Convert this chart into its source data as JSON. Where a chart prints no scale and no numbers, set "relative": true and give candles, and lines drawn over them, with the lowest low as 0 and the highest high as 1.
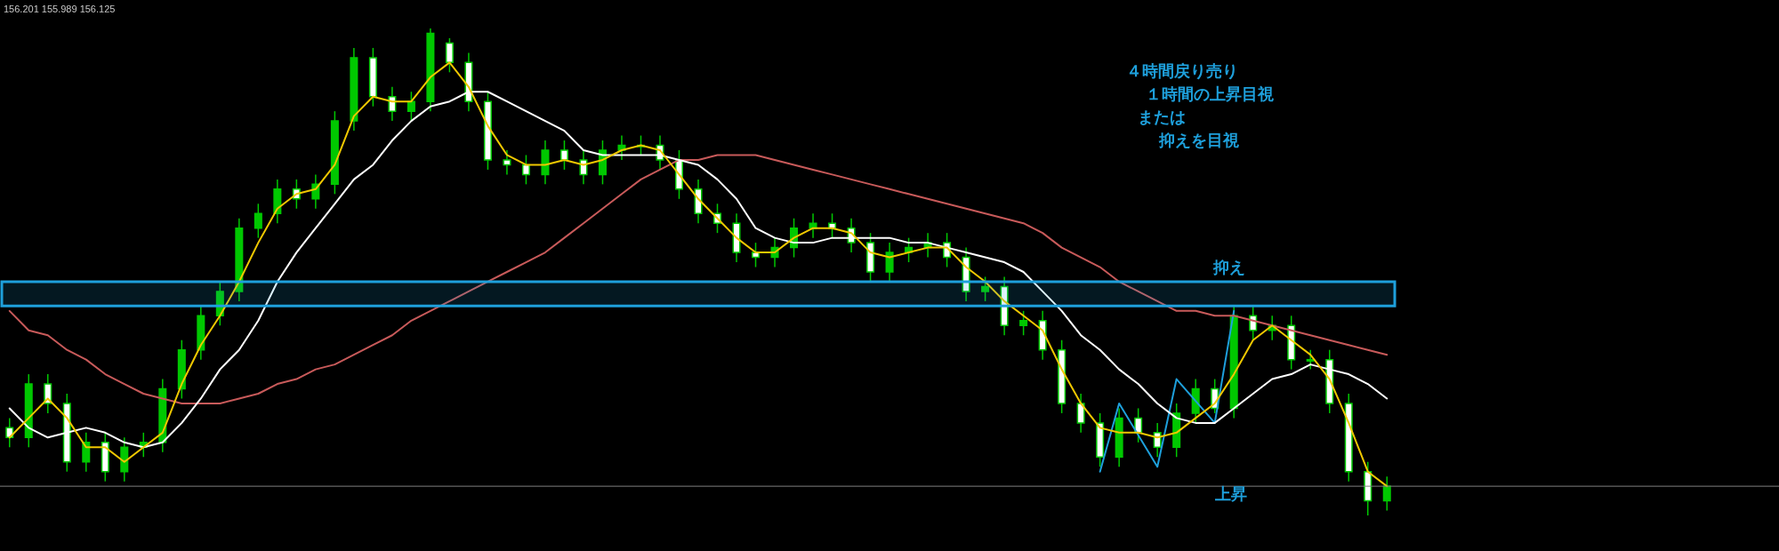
{
  "chart_data": {
    "type": "candlestick",
    "relative": true,
    "legend": false,
    "colors": [
      "#ffffff",
      "#00c800",
      "#ffffff",
      "#ffffff",
      "#00c800",
      "#ffffff",
      "#00c800",
      "#00c800",
      "#00c800",
      "#00c800",
      "#00c800",
      "#00c800",
      "#00c800",
      "#00c800",
      "#00c800",
      "#ffffff",
      "#00c800",
      "#00c800",
      "#00c800",
      "#ffffff",
      "#ffffff",
      "#00c800",
      "#00c800",
      "#ffffff",
      "#ffffff",
      "#ffffff",
      "#ffffff",
      "#ffffff",
      "#00c800",
      "#ffffff",
      "#ffffff",
      "#00c800",
      "#00c800",
      "#00c800",
      "#ffffff",
      "#ffffff",
      "#ffffff",
      "#ffffff",
      "#ffffff",
      "#ffffff",
      "#00c800",
      "#00c800",
      "#00c800",
      "#ffffff",
      "#ffffff",
      "#ffffff",
      "#00c800",
      "#00c800",
      "#00c800",
      "#ffffff",
      "#ffffff",
      "#00c800",
      "#ffffff",
      "#00c800",
      "#ffffff",
      "#ffffff",
      "#ffffff",
      "#ffffff",
      "#00c800",
      "#ffffff",
      "#ffffff",
      "#00c800",
      "#00c800",
      "#ffffff",
      "#00c800",
      "#ffffff",
      "#00c800",
      "#ffffff",
      "#00c800",
      "#ffffff",
      "#ffffff",
      "#ffffff",
      "#00c800"
    ],
    "categories": [
      null,
      null,
      null,
      null,
      null,
      null,
      null,
      null,
      null,
      null,
      null,
      null,
      null,
      null,
      null,
      null,
      null,
      null,
      null,
      null,
      null,
      null,
      null,
      null,
      null,
      null,
      null,
      null,
      null,
      null,
      null,
      null,
      null,
      null,
      null,
      null,
      null,
      null,
      null,
      null,
      null,
      null,
      null,
      null,
      null,
      null,
      null,
      null,
      null,
      null,
      null,
      null,
      null,
      null,
      null,
      null,
      null,
      null,
      null,
      null,
      null,
      null,
      null,
      null,
      null,
      null,
      null,
      null,
      null,
      null,
      null,
      null,
      null
    ],
    "ohlc": [
      [
        0.18,
        0.2,
        0.14,
        0.16
      ],
      [
        0.16,
        0.29,
        0.14,
        0.27
      ],
      [
        0.27,
        0.29,
        0.21,
        0.23
      ],
      [
        0.23,
        0.25,
        0.09,
        0.11
      ],
      [
        0.11,
        0.17,
        0.09,
        0.15
      ],
      [
        0.15,
        0.17,
        0.07,
        0.09
      ],
      [
        0.09,
        0.16,
        0.07,
        0.14
      ],
      [
        0.14,
        0.17,
        0.12,
        0.15
      ],
      [
        0.15,
        0.28,
        0.13,
        0.26
      ],
      [
        0.26,
        0.36,
        0.24,
        0.34
      ],
      [
        0.34,
        0.43,
        0.32,
        0.41
      ],
      [
        0.41,
        0.48,
        0.39,
        0.46
      ],
      [
        0.46,
        0.61,
        0.44,
        0.59
      ],
      [
        0.59,
        0.64,
        0.57,
        0.62
      ],
      [
        0.62,
        0.69,
        0.6,
        0.67
      ],
      [
        0.67,
        0.69,
        0.63,
        0.65
      ],
      [
        0.65,
        0.7,
        0.63,
        0.68
      ],
      [
        0.68,
        0.83,
        0.66,
        0.81
      ],
      [
        0.81,
        0.96,
        0.79,
        0.94
      ],
      [
        0.94,
        0.96,
        0.84,
        0.86
      ],
      [
        0.86,
        0.88,
        0.81,
        0.83
      ],
      [
        0.83,
        0.87,
        0.81,
        0.85
      ],
      [
        0.85,
        1.0,
        0.83,
        0.99
      ],
      [
        0.97,
        0.98,
        0.91,
        0.93
      ],
      [
        0.93,
        0.95,
        0.83,
        0.85
      ],
      [
        0.85,
        0.87,
        0.71,
        0.73
      ],
      [
        0.73,
        0.75,
        0.7,
        0.72
      ],
      [
        0.72,
        0.74,
        0.68,
        0.7
      ],
      [
        0.7,
        0.77,
        0.68,
        0.75
      ],
      [
        0.75,
        0.77,
        0.71,
        0.73
      ],
      [
        0.73,
        0.75,
        0.68,
        0.7
      ],
      [
        0.7,
        0.77,
        0.68,
        0.75
      ],
      [
        0.75,
        0.78,
        0.73,
        0.76
      ],
      [
        0.76,
        0.78,
        0.74,
        0.76
      ],
      [
        0.76,
        0.78,
        0.71,
        0.73
      ],
      [
        0.73,
        0.75,
        0.65,
        0.67
      ],
      [
        0.67,
        0.69,
        0.6,
        0.62
      ],
      [
        0.62,
        0.64,
        0.58,
        0.6
      ],
      [
        0.6,
        0.62,
        0.52,
        0.54
      ],
      [
        0.54,
        0.56,
        0.51,
        0.53
      ],
      [
        0.53,
        0.57,
        0.51,
        0.55
      ],
      [
        0.55,
        0.61,
        0.53,
        0.59
      ],
      [
        0.59,
        0.62,
        0.57,
        0.6
      ],
      [
        0.6,
        0.62,
        0.57,
        0.59
      ],
      [
        0.59,
        0.61,
        0.54,
        0.56
      ],
      [
        0.56,
        0.58,
        0.48,
        0.5
      ],
      [
        0.5,
        0.56,
        0.48,
        0.54
      ],
      [
        0.54,
        0.57,
        0.52,
        0.55
      ],
      [
        0.55,
        0.58,
        0.53,
        0.56
      ],
      [
        0.56,
        0.58,
        0.51,
        0.53
      ],
      [
        0.53,
        0.55,
        0.44,
        0.46
      ],
      [
        0.46,
        0.49,
        0.44,
        0.47
      ],
      [
        0.47,
        0.49,
        0.37,
        0.39
      ],
      [
        0.39,
        0.42,
        0.37,
        0.4
      ],
      [
        0.4,
        0.42,
        0.32,
        0.34
      ],
      [
        0.34,
        0.36,
        0.21,
        0.23
      ],
      [
        0.23,
        0.25,
        0.17,
        0.19
      ],
      [
        0.19,
        0.21,
        0.1,
        0.12
      ],
      [
        0.12,
        0.22,
        0.1,
        0.2
      ],
      [
        0.2,
        0.22,
        0.15,
        0.17
      ],
      [
        0.17,
        0.19,
        0.12,
        0.14
      ],
      [
        0.14,
        0.23,
        0.12,
        0.21
      ],
      [
        0.21,
        0.28,
        0.19,
        0.26
      ],
      [
        0.26,
        0.28,
        0.21,
        0.22
      ],
      [
        0.22,
        0.43,
        0.2,
        0.41
      ],
      [
        0.41,
        0.43,
        0.36,
        0.38
      ],
      [
        0.38,
        0.41,
        0.36,
        0.39
      ],
      [
        0.39,
        0.41,
        0.3,
        0.32
      ],
      [
        0.32,
        0.34,
        0.3,
        0.32
      ],
      [
        0.32,
        0.34,
        0.21,
        0.23
      ],
      [
        0.23,
        0.25,
        0.07,
        0.09
      ],
      [
        0.09,
        0.11,
        0.0,
        0.03
      ],
      [
        0.03,
        0.08,
        0.01,
        0.06
      ]
    ],
    "series": [
      {
        "type": "line",
        "color": "#f0c800",
        "values": [
          0.16,
          0.2,
          0.24,
          0.2,
          0.14,
          0.14,
          0.11,
          0.14,
          0.17,
          0.27,
          0.35,
          0.41,
          0.48,
          0.56,
          0.63,
          0.66,
          0.67,
          0.72,
          0.82,
          0.86,
          0.85,
          0.85,
          0.9,
          0.93,
          0.88,
          0.8,
          0.74,
          0.72,
          0.72,
          0.73,
          0.72,
          0.73,
          0.75,
          0.76,
          0.75,
          0.7,
          0.65,
          0.61,
          0.57,
          0.54,
          0.54,
          0.57,
          0.59,
          0.59,
          0.58,
          0.54,
          0.53,
          0.54,
          0.55,
          0.55,
          0.51,
          0.48,
          0.44,
          0.41,
          0.38,
          0.3,
          0.23,
          0.18,
          0.17,
          0.17,
          0.16,
          0.17,
          0.2,
          0.23,
          0.29,
          0.36,
          0.39,
          0.36,
          0.33,
          0.28,
          0.19,
          0.09,
          0.06
        ]
      },
      {
        "type": "line",
        "color": "#ffffff",
        "values": [
          0.22,
          0.18,
          0.16,
          0.17,
          0.18,
          0.17,
          0.15,
          0.14,
          0.15,
          0.19,
          0.24,
          0.3,
          0.34,
          0.4,
          0.48,
          0.54,
          0.59,
          0.64,
          0.69,
          0.72,
          0.77,
          0.81,
          0.84,
          0.85,
          0.87,
          0.87,
          0.85,
          0.83,
          0.81,
          0.79,
          0.75,
          0.74,
          0.74,
          0.74,
          0.74,
          0.73,
          0.72,
          0.69,
          0.65,
          0.59,
          0.57,
          0.56,
          0.56,
          0.57,
          0.57,
          0.57,
          0.57,
          0.56,
          0.56,
          0.55,
          0.54,
          0.53,
          0.52,
          0.5,
          0.46,
          0.42,
          0.37,
          0.34,
          0.3,
          0.27,
          0.23,
          0.2,
          0.19,
          0.19,
          0.22,
          0.25,
          0.28,
          0.29,
          0.31,
          0.3,
          0.29,
          0.27,
          0.24
        ]
      },
      {
        "type": "line",
        "color": "#c85a5a",
        "values": [
          0.42,
          0.38,
          0.37,
          0.34,
          0.32,
          0.29,
          0.27,
          0.25,
          0.24,
          0.23,
          0.23,
          0.23,
          0.24,
          0.25,
          0.27,
          0.28,
          0.3,
          0.31,
          0.33,
          0.35,
          0.37,
          0.4,
          0.42,
          0.44,
          0.46,
          0.48,
          0.5,
          0.52,
          0.54,
          0.57,
          0.6,
          0.63,
          0.66,
          0.69,
          0.71,
          0.73,
          0.73,
          0.74,
          0.74,
          0.74,
          0.73,
          0.72,
          0.71,
          0.7,
          0.69,
          0.68,
          0.67,
          0.66,
          0.65,
          0.64,
          0.63,
          0.62,
          0.61,
          0.6,
          0.58,
          0.55,
          0.53,
          0.51,
          0.48,
          0.46,
          0.44,
          0.42,
          0.42,
          0.41,
          0.41,
          0.4,
          0.39,
          0.38,
          0.37,
          0.36,
          0.35,
          0.34,
          0.33
        ]
      },
      {
        "type": "line",
        "color": "#1ea0dc",
        "values": [
          null,
          null,
          null,
          null,
          null,
          null,
          null,
          null,
          null,
          null,
          null,
          null,
          null,
          null,
          null,
          null,
          null,
          null,
          null,
          null,
          null,
          null,
          null,
          null,
          null,
          null,
          null,
          null,
          null,
          null,
          null,
          null,
          null,
          null,
          null,
          null,
          null,
          null,
          null,
          null,
          null,
          null,
          null,
          null,
          null,
          null,
          null,
          null,
          null,
          null,
          null,
          null,
          null,
          null,
          null,
          null,
          null,
          0.09,
          0.23,
          null,
          0.1,
          0.28,
          null,
          0.19,
          0.42,
          null,
          null,
          null,
          null,
          null,
          null,
          null,
          null
        ]
      }
    ],
    "bands": [
      {
        "axis": "y",
        "from": 0.43,
        "to": 0.48,
        "label": "抑え",
        "color": "#1ea0dc"
      }
    ],
    "ref_lines": [
      {
        "axis": "y",
        "value": 0.06,
        "color": "#808080"
      }
    ],
    "annotations": [
      "156.201 155.989 156.125",
      "４時間戻り売り",
      "１時間の上昇目視",
      "または",
      "抑えを目視",
      "上昇"
    ]
  }
}
